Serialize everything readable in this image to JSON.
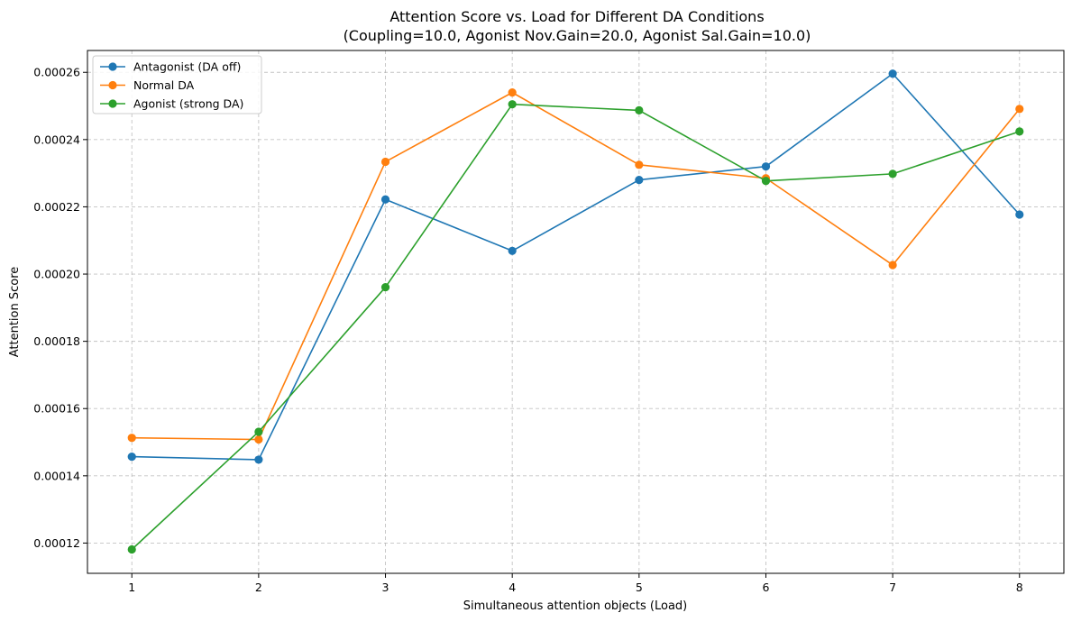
{
  "chart_data": {
    "type": "line",
    "title": "Attention Score vs. Load for Different DA Conditions",
    "subtitle": "(Coupling=10.0, Agonist Nov.Gain=20.0, Agonist Sal.Gain=10.0)",
    "xlabel": "Simultaneous attention objects (Load)",
    "ylabel": "Attention Score",
    "x": [
      1,
      2,
      3,
      4,
      5,
      6,
      7,
      8
    ],
    "xlim": [
      0.65,
      8.35
    ],
    "ylim": [
      0.000111,
      0.0002665
    ],
    "xticks": [
      1,
      2,
      3,
      4,
      5,
      6,
      7,
      8
    ],
    "xtick_labels": [
      "1",
      "2",
      "3",
      "4",
      "5",
      "6",
      "7",
      "8"
    ],
    "yticks": [
      0.00012,
      0.00014,
      0.00016,
      0.00018,
      0.0002,
      0.00022,
      0.00024,
      0.00026
    ],
    "ytick_labels": [
      "0.00012",
      "0.00014",
      "0.00016",
      "0.00018",
      "0.00020",
      "0.00022",
      "0.00024",
      "0.00026"
    ],
    "grid": true,
    "legend_position": "top-left",
    "series": [
      {
        "name": "Antagonist (DA off)",
        "color": "#1f77b4",
        "values": [
          0.0001457,
          0.0001448,
          0.0002222,
          0.0002069,
          0.000228,
          0.000232,
          0.0002596,
          0.0002177
        ]
      },
      {
        "name": "Normal DA",
        "color": "#ff7f0e",
        "values": [
          0.0001513,
          0.0001508,
          0.0002334,
          0.000254,
          0.0002325,
          0.0002285,
          0.0002027,
          0.0002491
        ]
      },
      {
        "name": "Agonist (strong DA)",
        "color": "#2ca02c",
        "values": [
          0.0001181,
          0.0001531,
          0.0001961,
          0.0002505,
          0.0002487,
          0.0002277,
          0.0002298,
          0.0002424
        ]
      }
    ]
  }
}
